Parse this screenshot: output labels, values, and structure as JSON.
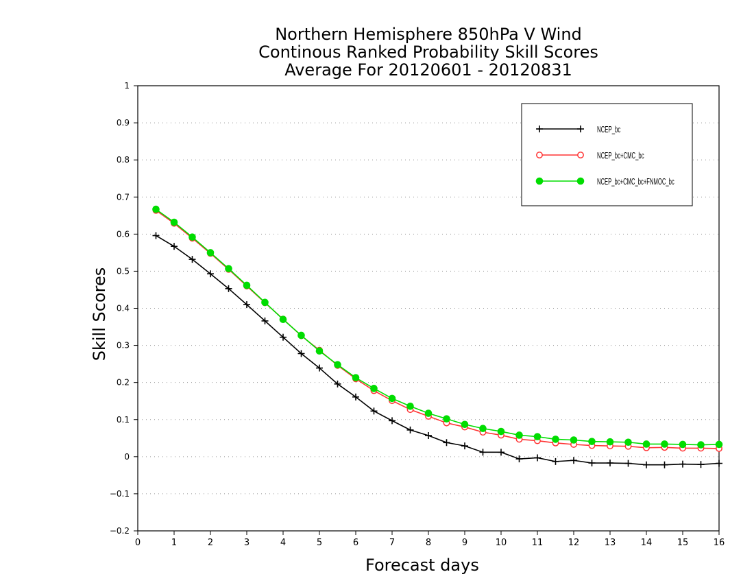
{
  "chart_data": {
    "type": "line",
    "title": [
      "Northern Hemisphere 850hPa V Wind",
      "Continous Ranked Probability Skill Scores",
      "Average For 20120601 - 20120831"
    ],
    "xlabel": "Forecast days",
    "ylabel": "Skill Scores",
    "xlim": [
      0,
      16
    ],
    "ylim": [
      -0.2,
      1
    ],
    "x_ticks": [
      "0",
      "1",
      "2",
      "3",
      "4",
      "5",
      "6",
      "7",
      "8",
      "9",
      "10",
      "11",
      "12",
      "13",
      "14",
      "15",
      "16"
    ],
    "y_ticks": [
      "−0.2",
      "−0.1",
      "0",
      "0.1",
      "0.2",
      "0.3",
      "0.4",
      "0.5",
      "0.6",
      "0.7",
      "0.8",
      "0.9",
      "1"
    ],
    "grid": "horizontal dotted",
    "legend_position": "top-right",
    "x": [
      0.5,
      1,
      1.5,
      2,
      2.5,
      3,
      3.5,
      4,
      4.5,
      5,
      5.5,
      6,
      6.5,
      7,
      7.5,
      8,
      8.5,
      9,
      9.5,
      10,
      10.5,
      11,
      11.5,
      12,
      12.5,
      13,
      13.5,
      14,
      14.5,
      15,
      15.5,
      16
    ],
    "series": [
      {
        "name": "NCEP_bc",
        "color": "#000000",
        "marker": "plus",
        "values": [
          0.596,
          0.567,
          0.532,
          0.493,
          0.453,
          0.41,
          0.366,
          0.322,
          0.278,
          0.239,
          0.196,
          0.161,
          0.123,
          0.097,
          0.072,
          0.057,
          0.038,
          0.029,
          0.012,
          0.012,
          -0.006,
          -0.003,
          -0.013,
          -0.01,
          -0.017,
          -0.017,
          -0.018,
          -0.022,
          -0.022,
          -0.02,
          -0.021,
          -0.018
        ]
      },
      {
        "name": "NCEP_bc+CMC_bc",
        "color": "#ff3333",
        "marker": "open-circle",
        "values": [
          0.664,
          0.629,
          0.589,
          0.548,
          0.505,
          0.46,
          0.415,
          0.371,
          0.326,
          0.287,
          0.246,
          0.21,
          0.178,
          0.151,
          0.127,
          0.109,
          0.091,
          0.08,
          0.066,
          0.058,
          0.047,
          0.043,
          0.037,
          0.033,
          0.03,
          0.029,
          0.028,
          0.024,
          0.025,
          0.023,
          0.023,
          0.022
        ]
      },
      {
        "name": "NCEP_bc+CMC_bc+FNMOC_bc",
        "color": "#00dd00",
        "marker": "filled-circle",
        "values": [
          0.667,
          0.632,
          0.592,
          0.55,
          0.507,
          0.462,
          0.416,
          0.37,
          0.327,
          0.285,
          0.248,
          0.213,
          0.184,
          0.157,
          0.136,
          0.117,
          0.102,
          0.087,
          0.076,
          0.068,
          0.058,
          0.054,
          0.047,
          0.045,
          0.041,
          0.04,
          0.039,
          0.034,
          0.034,
          0.033,
          0.032,
          0.033
        ]
      }
    ]
  }
}
